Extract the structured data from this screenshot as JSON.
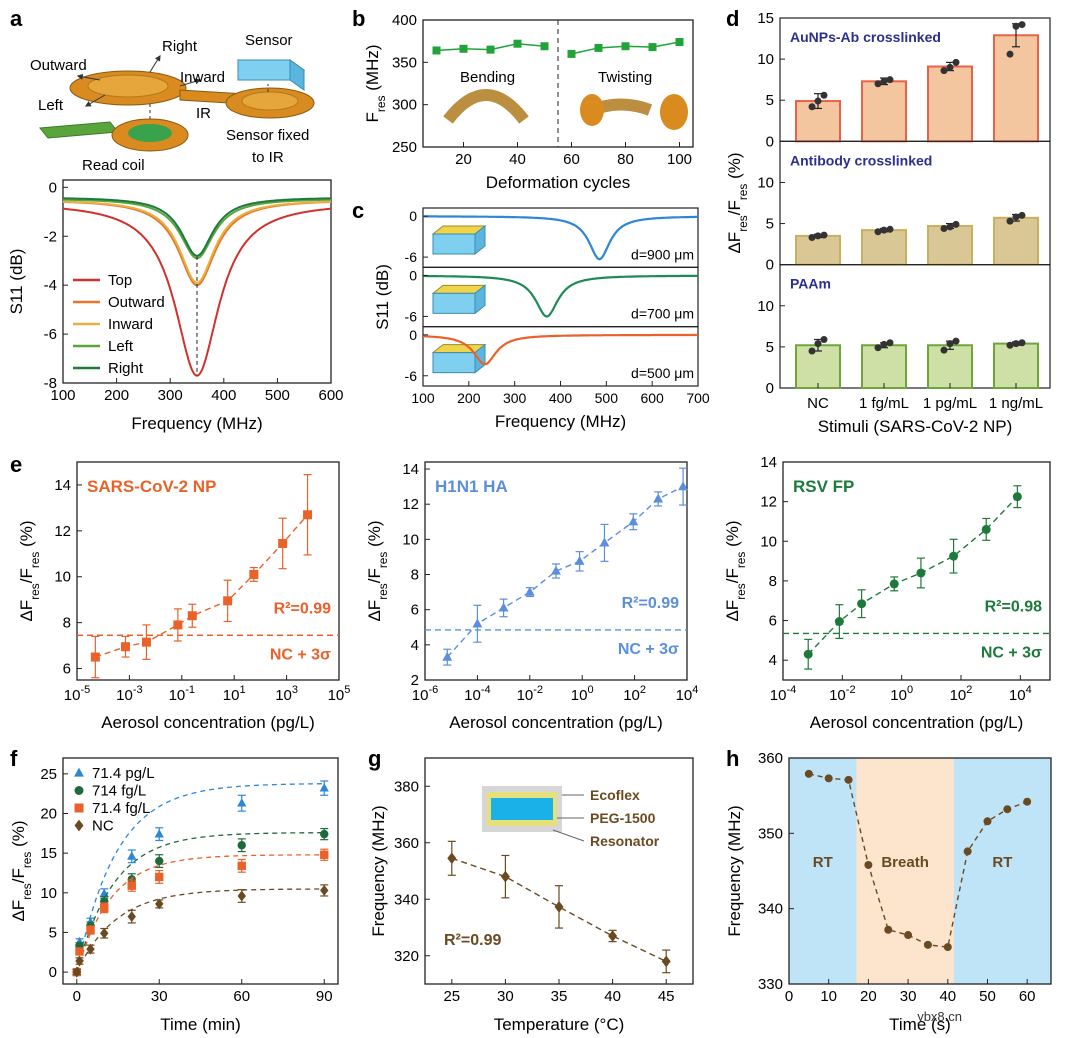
{
  "panel_letters": [
    "a",
    "b",
    "c",
    "d",
    "e",
    "f",
    "g",
    "h"
  ],
  "diagram_a": {
    "labels": [
      "Right",
      "Outward",
      "Inward",
      "Left",
      "Sensor",
      "IR",
      "Read coil",
      "Sensor fixed",
      "to IR"
    ]
  },
  "diagram_b_labels": [
    "Bending",
    "Twisting"
  ],
  "inset_c_labels": [
    "d=900 μm",
    "d=700 μm",
    "d=500 μm"
  ],
  "inset_g_labels": [
    "Ecoflex",
    "PEG-1500",
    "Resonator"
  ],
  "watermark": "ybx8.cn",
  "colors": {
    "orange": "#e8622a",
    "blue": "#5b8fdc",
    "green": "#1e7a3c",
    "navy": "#2b2f8f",
    "brown": "#6b4a22",
    "square_green": "#22a33a"
  },
  "chart_data": [
    {
      "id": "a",
      "type": "line",
      "xlabel": "Frequency (MHz)",
      "ylabel": "S11 (dB)",
      "xlim": [
        100,
        600
      ],
      "ylim": [
        -8,
        0.3
      ],
      "xticks": [
        "100",
        "200",
        "300",
        "400",
        "500",
        "600"
      ],
      "xtick_values": [
        100,
        200,
        300,
        400,
        500,
        600
      ],
      "yticks": [
        "0",
        "-2",
        "-4",
        "-6",
        "-8"
      ],
      "ytick_values": [
        0,
        -2,
        -4,
        -6,
        -8
      ],
      "legend": [
        "Top",
        "Outward",
        "Inward",
        "Left",
        "Right"
      ],
      "series": [
        {
          "name": "Top",
          "center": 350,
          "depth": -7.7,
          "baseline": -0.6,
          "width": 50
        },
        {
          "name": "Outward",
          "center": 350,
          "depth": -4.0,
          "baseline": -0.5,
          "width": 42
        },
        {
          "name": "Inward",
          "center": 350,
          "depth": -3.9,
          "baseline": -0.5,
          "width": 40
        },
        {
          "name": "Left",
          "center": 350,
          "depth": -2.9,
          "baseline": -0.45,
          "width": 38
        },
        {
          "name": "Right",
          "center": 350,
          "depth": -2.8,
          "baseline": -0.4,
          "width": 36
        }
      ]
    },
    {
      "id": "b",
      "type": "line",
      "xlabel": "Deformation cycles",
      "ylabel": "F",
      "ylabel_sub": "res",
      "ylabel_unit": " (MHz)",
      "xlim": [
        5,
        105
      ],
      "ylim": [
        250,
        400
      ],
      "xticks": [
        "20",
        "40",
        "60",
        "80",
        "100"
      ],
      "xtick_values": [
        20,
        40,
        60,
        80,
        100
      ],
      "yticks": [
        "250",
        "300",
        "350",
        "400"
      ],
      "ytick_values": [
        250,
        300,
        350,
        400
      ],
      "segments": [
        {
          "name": "Bending",
          "x": [
            10,
            20,
            30,
            40,
            50
          ],
          "y": [
            364,
            366,
            365,
            372,
            369
          ]
        },
        {
          "name": "Twisting",
          "x": [
            60,
            70,
            80,
            90,
            100
          ],
          "y": [
            360,
            367,
            369,
            368,
            374
          ]
        }
      ],
      "divider_x": 55
    },
    {
      "id": "c",
      "type": "line",
      "xlabel": "Frequency (MHz)",
      "ylabel": "S11 (dB)",
      "xlim": [
        100,
        700
      ],
      "xticks": [
        "100",
        "200",
        "300",
        "400",
        "500",
        "600",
        "700"
      ],
      "xtick_values": [
        100,
        200,
        300,
        400,
        500,
        600,
        700
      ],
      "subplot_yticks": [
        "0",
        "-6"
      ],
      "series": [
        {
          "name": "d=900 μm",
          "center": 485,
          "depth": -6.3,
          "width": 28
        },
        {
          "name": "d=700 μm",
          "center": 370,
          "depth": -6.0,
          "width": 30
        },
        {
          "name": "d=500 μm",
          "center": 235,
          "depth": -4.3,
          "width": 30
        }
      ]
    },
    {
      "id": "d",
      "type": "bar",
      "ylabel": "ΔF",
      "xlabel": "Stimuli (SARS-CoV-2 NP)",
      "categories": [
        "NC",
        "1 fg/mL",
        "1 pg/mL",
        "1 ng/mL"
      ],
      "subplots": [
        {
          "title": "AuNPs-Ab crosslinked",
          "values": [
            4.9,
            7.3,
            9.1,
            12.9
          ],
          "errors": [
            0.9,
            0.4,
            0.5,
            1.4
          ],
          "points": [
            [
              4.2,
              4.9,
              5.6
            ],
            [
              7.0,
              7.3,
              7.5
            ],
            [
              8.6,
              9.0,
              9.6
            ],
            [
              10.6,
              14.0,
              14.2
            ]
          ],
          "ylim": [
            0,
            15
          ],
          "yticks": [
            "0",
            "5",
            "10",
            "15"
          ],
          "ytick_values": [
            0,
            5,
            10,
            15
          ]
        },
        {
          "title": "Antibody crosslinked",
          "values": [
            3.5,
            4.2,
            4.7,
            5.7
          ],
          "errors": [
            0.2,
            0.2,
            0.3,
            0.4
          ],
          "points": [
            [
              3.3,
              3.5,
              3.6
            ],
            [
              4.0,
              4.2,
              4.3
            ],
            [
              4.4,
              4.6,
              4.9
            ],
            [
              5.3,
              5.8,
              6.0
            ]
          ],
          "ylim": [
            0,
            15
          ],
          "yticks": [
            "0",
            "5",
            "10"
          ],
          "ytick_values": [
            0,
            5,
            10
          ]
        },
        {
          "title": "PAAm",
          "values": [
            5.2,
            5.2,
            5.2,
            5.4
          ],
          "errors": [
            0.7,
            0.3,
            0.5,
            0.2
          ],
          "points": [
            [
              4.5,
              5.4,
              5.9
            ],
            [
              4.9,
              5.3,
              5.5
            ],
            [
              4.6,
              5.4,
              5.7
            ],
            [
              5.2,
              5.4,
              5.5
            ]
          ],
          "ylim": [
            0,
            15
          ],
          "yticks": [
            "0",
            "5",
            "10"
          ],
          "ytick_values": [
            0,
            5,
            10
          ]
        }
      ]
    },
    {
      "id": "e1",
      "type": "scatter",
      "title": "SARS-CoV-2 NP",
      "xlabel": "Aerosol concentration (pg/L)",
      "ylabel": "ΔF",
      "xlog": true,
      "xlim": [
        -5,
        5
      ],
      "ylim": [
        5.5,
        15
      ],
      "xtick_exps": [
        "-5",
        "-3",
        "-1",
        "1",
        "3",
        "5"
      ],
      "xtick_values": [
        -5,
        -3,
        -1,
        1,
        3,
        5
      ],
      "yticks": [
        "6",
        "8",
        "10",
        "12",
        "14"
      ],
      "ytick_values": [
        6,
        8,
        10,
        12,
        14
      ],
      "x": [
        -4.3,
        -3.15,
        -2.35,
        -1.15,
        -0.6,
        0.75,
        1.75,
        2.85,
        3.8
      ],
      "y": [
        6.5,
        6.95,
        7.15,
        7.9,
        8.3,
        8.95,
        10.1,
        11.45,
        12.7
      ],
      "err": [
        0.9,
        0.45,
        0.75,
        0.7,
        0.5,
        0.9,
        0.3,
        1.1,
        1.75
      ],
      "r2": "R²=0.99",
      "threshold": 7.45,
      "threshold_label": "NC + 3σ"
    },
    {
      "id": "e2",
      "type": "scatter",
      "title": "H1N1 HA",
      "xlabel": "Aerosol concentration (pg/L)",
      "ylabel": "ΔF",
      "xlog": true,
      "xlim": [
        -6,
        4
      ],
      "ylim": [
        2,
        14.4
      ],
      "xtick_exps": [
        "-6",
        "-4",
        "-2",
        "0",
        "2",
        "4"
      ],
      "xtick_values": [
        -6,
        -4,
        -2,
        0,
        2,
        4
      ],
      "yticks": [
        "2",
        "4",
        "6",
        "8",
        "10",
        "12",
        "14"
      ],
      "ytick_values": [
        2,
        4,
        6,
        8,
        10,
        12,
        14
      ],
      "x": [
        -5.15,
        -4.0,
        -3.0,
        -2.0,
        -1.0,
        -0.1,
        0.85,
        1.95,
        2.9,
        3.85
      ],
      "y": [
        3.3,
        5.2,
        6.1,
        7.0,
        8.2,
        8.75,
        9.8,
        11.0,
        12.3,
        13.0
      ],
      "err": [
        0.45,
        1.05,
        0.5,
        0.25,
        0.4,
        0.55,
        1.05,
        0.45,
        0.4,
        1.05
      ],
      "r2": "R²=0.99",
      "threshold": 4.85,
      "threshold_label": "NC + 3σ"
    },
    {
      "id": "e3",
      "type": "scatter",
      "title": "RSV FP",
      "xlabel": "Aerosol concentration (pg/L)",
      "ylabel": "ΔF",
      "xlog": true,
      "xlim": [
        -4,
        5
      ],
      "ylim": [
        3,
        14
      ],
      "xtick_exps": [
        "-4",
        "-2",
        "0",
        "2",
        "4"
      ],
      "xtick_values": [
        -4,
        -2,
        0,
        2,
        4
      ],
      "yticks": [
        "4",
        "6",
        "8",
        "10",
        "12",
        "14"
      ],
      "ytick_values": [
        4,
        6,
        8,
        10,
        12,
        14
      ],
      "x": [
        -3.15,
        -2.1,
        -1.35,
        -0.25,
        0.65,
        1.75,
        2.85,
        3.9
      ],
      "y": [
        4.3,
        5.95,
        6.85,
        7.85,
        8.4,
        9.25,
        10.6,
        12.25
      ],
      "err": [
        0.75,
        0.85,
        0.7,
        0.35,
        0.75,
        0.85,
        0.55,
        0.55
      ],
      "r2": "R²=0.98",
      "threshold": 5.35,
      "threshold_label": "NC + 3σ"
    },
    {
      "id": "f",
      "type": "scatter",
      "xlabel": "Time (min)",
      "ylabel": "ΔF",
      "xlim": [
        -5,
        95
      ],
      "ylim": [
        -1.5,
        27
      ],
      "xticks": [
        "0",
        "30",
        "60",
        "90"
      ],
      "xtick_values": [
        0,
        30,
        60,
        90
      ],
      "yticks": [
        "0",
        "5",
        "10",
        "15",
        "20",
        "25"
      ],
      "ytick_values": [
        0,
        5,
        10,
        15,
        20,
        25
      ],
      "x": [
        0,
        1,
        5,
        10,
        20,
        30,
        60,
        90
      ],
      "series": [
        {
          "name": "71.4 pg/L",
          "marker": "triangle",
          "y": [
            0,
            3.8,
            6.3,
            9.9,
            14.6,
            17.4,
            21.3,
            23.2
          ],
          "err": [
            0.3,
            0.4,
            0.5,
            0.6,
            0.8,
            0.8,
            1.0,
            0.9
          ],
          "k": 0.07,
          "a": 23.8
        },
        {
          "name": "714 fg/L",
          "marker": "circle",
          "y": [
            0,
            3.3,
            5.8,
            8.9,
            11.7,
            14.0,
            16.0,
            17.4
          ],
          "err": [
            0.3,
            0.4,
            0.5,
            0.6,
            0.7,
            0.8,
            0.8,
            0.7
          ],
          "k": 0.075,
          "a": 17.6
        },
        {
          "name": "71.4 fg/L",
          "marker": "square",
          "y": [
            0,
            2.6,
            5.3,
            8.1,
            10.9,
            12.0,
            13.4,
            14.8
          ],
          "err": [
            0.3,
            0.4,
            0.5,
            0.6,
            0.7,
            0.8,
            0.8,
            0.7
          ],
          "k": 0.08,
          "a": 14.8
        },
        {
          "name": "NC",
          "marker": "diamond",
          "y": [
            0,
            1.4,
            2.9,
            4.9,
            7.0,
            8.6,
            9.6,
            10.3
          ],
          "err": [
            0.3,
            0.4,
            0.5,
            0.6,
            0.8,
            0.5,
            0.8,
            0.7
          ],
          "k": 0.07,
          "a": 10.5
        }
      ]
    },
    {
      "id": "g",
      "type": "scatter",
      "xlabel": "Temperature (°C)",
      "ylabel": "Frequency (MHz)",
      "xlim": [
        22.5,
        47.5
      ],
      "ylim": [
        310,
        390
      ],
      "xticks": [
        "25",
        "30",
        "35",
        "40",
        "45"
      ],
      "xtick_values": [
        25,
        30,
        35,
        40,
        45
      ],
      "yticks": [
        "320",
        "340",
        "360",
        "380"
      ],
      "ytick_values": [
        320,
        340,
        360,
        380
      ],
      "x": [
        25,
        30,
        35,
        40,
        45
      ],
      "y": [
        354.5,
        348,
        337.3,
        327,
        318
      ],
      "err": [
        6,
        7.5,
        7.5,
        2,
        4
      ],
      "r2": "R²=0.99"
    },
    {
      "id": "h",
      "type": "line",
      "xlabel": "Time (s)",
      "ylabel": "Frequency (MHz)",
      "xlim": [
        0,
        66
      ],
      "ylim": [
        330,
        360
      ],
      "xticks": [
        "0",
        "10",
        "20",
        "30",
        "40",
        "50",
        "60"
      ],
      "xtick_values": [
        0,
        10,
        20,
        30,
        40,
        50,
        60
      ],
      "yticks": [
        "330",
        "340",
        "350",
        "360"
      ],
      "ytick_values": [
        330,
        340,
        350,
        360
      ],
      "x": [
        5,
        10,
        15,
        20,
        25,
        30,
        35,
        40,
        45,
        50,
        55,
        60
      ],
      "y": [
        357.9,
        357.3,
        357.1,
        345.8,
        337.2,
        336.5,
        335.2,
        334.9,
        347.6,
        351.6,
        353.2,
        354.2
      ],
      "regions": [
        {
          "label": "RT",
          "from": 0,
          "to": 17
        },
        {
          "label": "Breath",
          "from": 17,
          "to": 41.5
        },
        {
          "label": "RT",
          "from": 41.5,
          "to": 66
        }
      ]
    }
  ]
}
